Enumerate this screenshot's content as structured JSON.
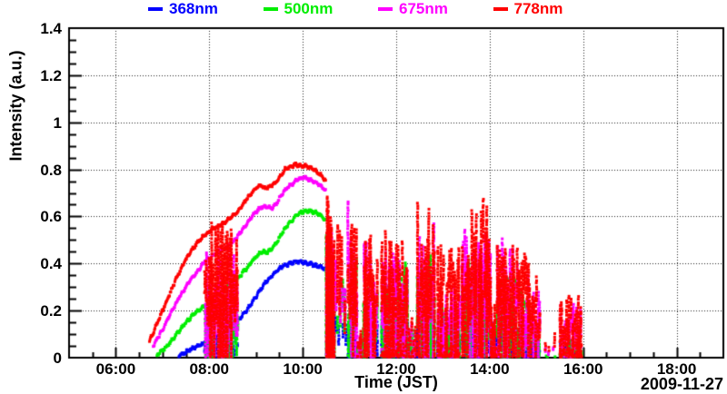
{
  "page": {
    "background": "#ffffff",
    "text_color": "#000000",
    "grid_color": "#222222",
    "frame_color": "#000000"
  },
  "chart_data": {
    "type": "scatter",
    "title": "",
    "xlabel": "Time (JST)",
    "ylabel": "Intensity (a.u.)",
    "date_label": "2009-11-27",
    "legend_position": "top",
    "grid": true,
    "x_axis": {
      "min": 5,
      "max": 19,
      "major_ticks": [
        6,
        8,
        10,
        12,
        14,
        16,
        18
      ],
      "major_labels": [
        "06:00",
        "08:00",
        "10:00",
        "12:00",
        "14:00",
        "16:00",
        "18:00"
      ],
      "minor_step": 0.5
    },
    "y_axis": {
      "min": 0,
      "max": 1.4,
      "major_ticks": [
        0,
        0.2,
        0.4,
        0.6,
        0.8,
        1,
        1.2,
        1.4
      ],
      "major_labels": [
        "0",
        "0.2",
        "0.4",
        "0.6",
        "0.8",
        "1",
        "1.2",
        "1.4"
      ],
      "minor_step": 0.05
    },
    "series": [
      {
        "name": "368nm",
        "color": "#0000ff",
        "trend": [
          [
            7.35,
            0.01
          ],
          [
            7.55,
            0.03
          ],
          [
            7.75,
            0.05
          ],
          [
            7.9,
            0.06
          ],
          [
            8.1,
            0.08
          ],
          [
            8.3,
            0.1
          ],
          [
            8.5,
            0.13
          ],
          [
            8.62,
            0.16
          ],
          [
            8.8,
            0.2
          ],
          [
            9.0,
            0.26
          ],
          [
            9.1,
            0.29
          ],
          [
            9.2,
            0.32
          ],
          [
            9.3,
            0.34
          ],
          [
            9.4,
            0.36
          ],
          [
            9.5,
            0.38
          ],
          [
            9.6,
            0.39
          ],
          [
            9.72,
            0.4
          ],
          [
            9.85,
            0.41
          ],
          [
            10.0,
            0.405
          ],
          [
            10.15,
            0.4
          ],
          [
            10.3,
            0.39
          ],
          [
            10.42,
            0.385
          ],
          [
            10.5,
            0.375
          ]
        ],
        "trend2": [
          [
            13.45,
            0.12
          ],
          [
            13.6,
            0.15
          ],
          [
            13.75,
            0.13
          ],
          [
            13.9,
            0.16
          ],
          [
            14.05,
            0.14
          ],
          [
            14.2,
            0.16
          ],
          [
            14.35,
            0.14
          ],
          [
            14.5,
            0.12
          ],
          [
            14.65,
            0.1
          ],
          [
            14.8,
            0.075
          ],
          [
            14.95,
            0.05
          ],
          [
            15.08,
            0.03
          ]
        ]
      },
      {
        "name": "500nm",
        "color": "#00ee00",
        "trend": [
          [
            6.88,
            0.01
          ],
          [
            7.1,
            0.05
          ],
          [
            7.3,
            0.1
          ],
          [
            7.5,
            0.15
          ],
          [
            7.7,
            0.19
          ],
          [
            7.9,
            0.22
          ],
          [
            8.1,
            0.25
          ],
          [
            8.3,
            0.29
          ],
          [
            8.5,
            0.32
          ],
          [
            8.62,
            0.34
          ],
          [
            8.8,
            0.38
          ],
          [
            9.0,
            0.43
          ],
          [
            9.12,
            0.45
          ],
          [
            9.25,
            0.45
          ],
          [
            9.38,
            0.47
          ],
          [
            9.5,
            0.51
          ],
          [
            9.62,
            0.55
          ],
          [
            9.75,
            0.58
          ],
          [
            9.88,
            0.61
          ],
          [
            10.0,
            0.62
          ],
          [
            10.15,
            0.625
          ],
          [
            10.3,
            0.615
          ],
          [
            10.42,
            0.6
          ],
          [
            10.5,
            0.58
          ]
        ],
        "trend2": [
          [
            14.2,
            0.3
          ],
          [
            14.35,
            0.33
          ],
          [
            14.5,
            0.34
          ],
          [
            14.65,
            0.28
          ],
          [
            14.8,
            0.2
          ],
          [
            14.95,
            0.13
          ],
          [
            15.05,
            0.08
          ]
        ]
      },
      {
        "name": "675nm",
        "color": "#ff00ff",
        "trend": [
          [
            6.8,
            0.05
          ],
          [
            7.0,
            0.12
          ],
          [
            7.2,
            0.2
          ],
          [
            7.4,
            0.27
          ],
          [
            7.6,
            0.33
          ],
          [
            7.8,
            0.38
          ],
          [
            7.9,
            0.41
          ],
          [
            8.1,
            0.44
          ],
          [
            8.3,
            0.46
          ],
          [
            8.5,
            0.49
          ],
          [
            8.62,
            0.52
          ],
          [
            8.8,
            0.57
          ],
          [
            9.0,
            0.62
          ],
          [
            9.12,
            0.64
          ],
          [
            9.25,
            0.64
          ],
          [
            9.35,
            0.635
          ],
          [
            9.45,
            0.66
          ],
          [
            9.55,
            0.69
          ],
          [
            9.65,
            0.72
          ],
          [
            9.78,
            0.74
          ],
          [
            9.9,
            0.76
          ],
          [
            10.05,
            0.765
          ],
          [
            10.2,
            0.75
          ],
          [
            10.35,
            0.735
          ],
          [
            10.5,
            0.71
          ]
        ]
      },
      {
        "name": "778nm",
        "color": "#ff0000",
        "trend": [
          [
            6.72,
            0.07
          ],
          [
            6.85,
            0.13
          ],
          [
            7.0,
            0.2
          ],
          [
            7.15,
            0.27
          ],
          [
            7.3,
            0.34
          ],
          [
            7.45,
            0.4
          ],
          [
            7.6,
            0.45
          ],
          [
            7.75,
            0.49
          ],
          [
            7.9,
            0.52
          ],
          [
            8.1,
            0.55
          ],
          [
            8.3,
            0.57
          ],
          [
            8.5,
            0.6
          ],
          [
            8.62,
            0.62
          ],
          [
            8.75,
            0.66
          ],
          [
            8.9,
            0.7
          ],
          [
            9.0,
            0.72
          ],
          [
            9.1,
            0.73
          ],
          [
            9.2,
            0.72
          ],
          [
            9.32,
            0.73
          ],
          [
            9.42,
            0.74
          ],
          [
            9.52,
            0.77
          ],
          [
            9.62,
            0.8
          ],
          [
            9.72,
            0.81
          ],
          [
            9.85,
            0.82
          ],
          [
            10.0,
            0.815
          ],
          [
            10.15,
            0.81
          ],
          [
            10.3,
            0.79
          ],
          [
            10.42,
            0.77
          ],
          [
            10.5,
            0.75
          ]
        ]
      }
    ],
    "cloud_bursts": [
      {
        "t0": 7.9,
        "t1": 8.62,
        "cols": 26,
        "tops": {
          "368nm": 0.1,
          "500nm": 0.32,
          "675nm": 0.5,
          "778nm": 0.6
        }
      },
      {
        "t0": 10.5,
        "t1": 10.68,
        "cols": 10,
        "full": true,
        "tops": {
          "368nm": 0.37,
          "500nm": 0.57,
          "675nm": 0.7,
          "778nm": 0.74
        },
        "tops_end": {
          "368nm": 0.15,
          "500nm": 0.32,
          "675nm": 0.48,
          "778nm": 0.52
        }
      },
      {
        "t0": 10.7,
        "t1": 10.94,
        "cols": 7,
        "sparse": true,
        "tops": {
          "368nm": 0.22,
          "500nm": 0.4,
          "675nm": 0.62,
          "778nm": 0.66
        }
      },
      {
        "t0": 10.96,
        "t1": 11.16,
        "cols": 8,
        "tops": {
          "368nm": 0.24,
          "500nm": 0.45,
          "675nm": 0.7,
          "778nm": 0.65
        }
      },
      {
        "t0": 11.17,
        "t1": 11.3,
        "cols": 4,
        "base": true,
        "tops": {
          "368nm": 0.05,
          "500nm": 0.08,
          "675nm": 0.12,
          "778nm": 0.15
        }
      },
      {
        "t0": 11.3,
        "t1": 11.6,
        "cols": 11,
        "tops": {
          "368nm": 0.18,
          "500nm": 0.32,
          "675nm": 0.5,
          "778nm": 0.58
        }
      },
      {
        "t0": 11.68,
        "t1": 12.25,
        "cols": 20,
        "base": true,
        "tops": {
          "368nm": 0.2,
          "500nm": 0.42,
          "675nm": 0.46,
          "778nm": 0.55
        }
      },
      {
        "t0": 12.26,
        "t1": 12.45,
        "cols": 6,
        "base": true,
        "tops": {
          "368nm": 0.08,
          "500nm": 0.12,
          "675nm": 0.15,
          "778nm": 0.18
        }
      },
      {
        "t0": 12.45,
        "t1": 12.82,
        "cols": 14,
        "tops": {
          "368nm": 0.24,
          "500nm": 0.45,
          "675nm": 0.58,
          "778nm": 0.68
        }
      },
      {
        "t0": 12.88,
        "t1": 13.36,
        "cols": 15,
        "base": true,
        "tops": {
          "368nm": 0.14,
          "500nm": 0.22,
          "675nm": 0.32,
          "778nm": 0.48
        }
      },
      {
        "t0": 13.4,
        "t1": 13.75,
        "cols": 13,
        "tops": {
          "368nm": 0.18,
          "500nm": 0.45,
          "675nm": 0.55,
          "778nm": 0.66
        }
      },
      {
        "t0": 13.76,
        "t1": 14.02,
        "cols": 11,
        "tops": {
          "368nm": 0.18,
          "500nm": 0.4,
          "675nm": 0.58,
          "778nm": 0.68
        }
      },
      {
        "t0": 14.03,
        "t1": 14.15,
        "cols": 5,
        "base": true,
        "tops": {
          "368nm": 0.1,
          "500nm": 0.15,
          "675nm": 0.2,
          "778nm": 0.25
        }
      },
      {
        "t0": 14.15,
        "t1": 14.48,
        "cols": 13,
        "tops": {
          "368nm": 0.18,
          "500nm": 0.35,
          "675nm": 0.55,
          "778nm": 0.66
        },
        "tops_end": {
          "368nm": 0.14,
          "500nm": 0.3,
          "675nm": 0.45,
          "778nm": 0.55
        }
      },
      {
        "t0": 14.48,
        "t1": 15.08,
        "cols": 20,
        "tops": {
          "368nm": 0.1,
          "500nm": 0.3,
          "675nm": 0.5,
          "778nm": 0.55
        },
        "tops_end": {
          "368nm": 0.04,
          "500nm": 0.12,
          "675nm": 0.28,
          "778nm": 0.36
        }
      },
      {
        "t0": 15.12,
        "t1": 15.42,
        "cols": 5,
        "sparse": true,
        "tops": {
          "368nm": 0,
          "500nm": 0.02,
          "675nm": 0.06,
          "778nm": 0.13
        }
      },
      {
        "t0": 15.5,
        "t1": 15.97,
        "cols": 15,
        "base": true,
        "tops": {
          "368nm": 0.03,
          "500nm": 0.07,
          "675nm": 0.24,
          "778nm": 0.31
        }
      }
    ]
  }
}
